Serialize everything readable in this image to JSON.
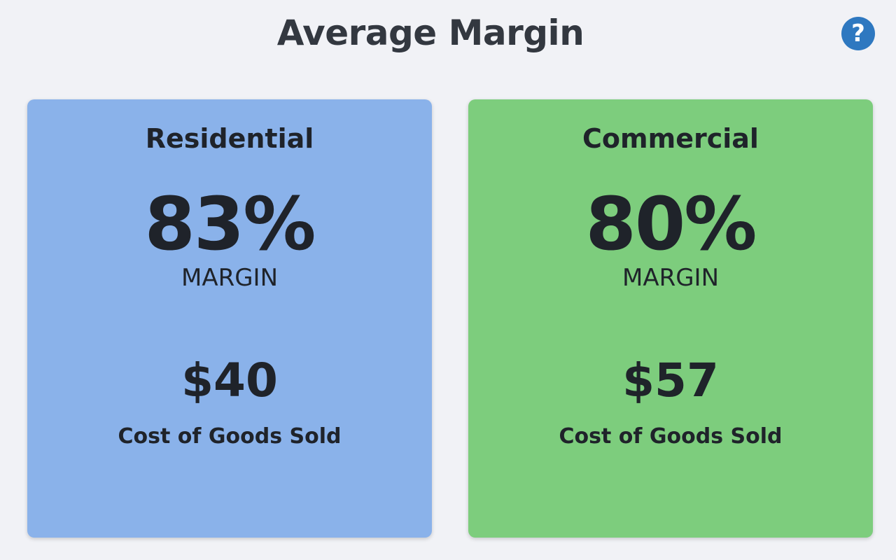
{
  "header": {
    "title": "Average Margin",
    "help_icon": "question-circle-icon",
    "help_glyph": "?"
  },
  "colors": {
    "residential_bg": "#8ab2ea",
    "commercial_bg": "#7dcd7d",
    "help_icon_bg": "#2e78c0"
  },
  "cards": [
    {
      "title": "Residential",
      "margin_value": "83%",
      "margin_label": "MARGIN",
      "cogs_value": "$40",
      "cogs_label": "Cost of Goods Sold"
    },
    {
      "title": "Commercial",
      "margin_value": "80%",
      "margin_label": "MARGIN",
      "cogs_value": "$57",
      "cogs_label": "Cost of Goods Sold"
    }
  ]
}
